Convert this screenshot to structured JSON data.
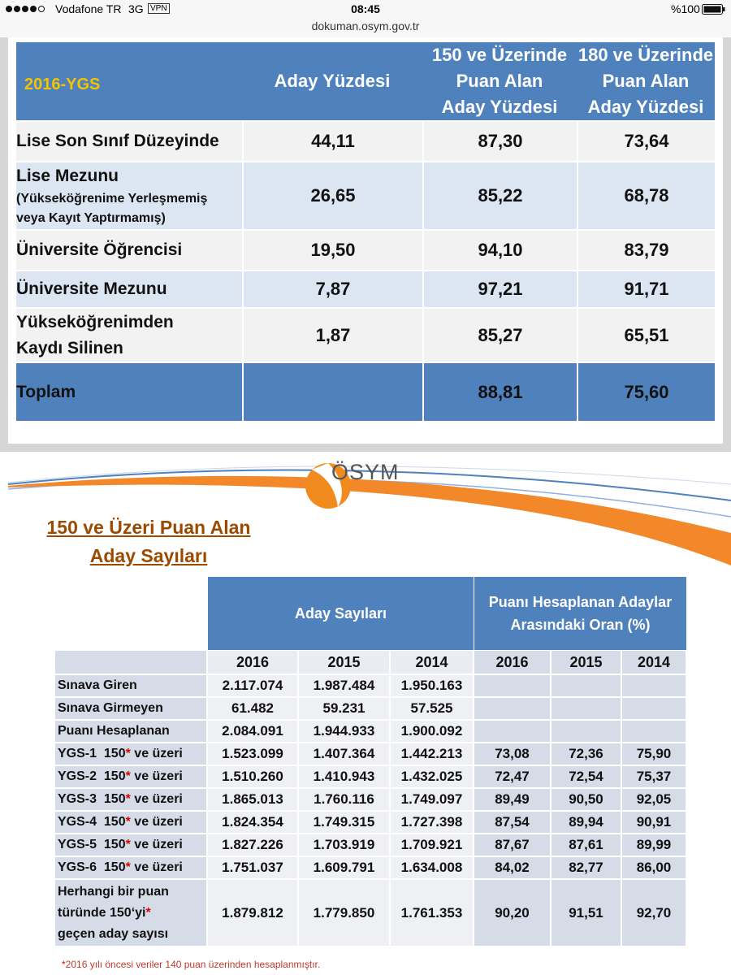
{
  "status_bar": {
    "carrier": "Vodafone TR",
    "network": "3G",
    "vpn": "VPN",
    "time": "08:45",
    "battery": "%100"
  },
  "url": "dokuman.osym.gov.tr",
  "table1": {
    "header": [
      [
        "2016-YGS"
      ],
      [
        "Aday Yüzdesi"
      ],
      [
        "150 ve Üzerinde",
        "Puan Alan",
        "Aday Yüzdesi"
      ],
      [
        "180 ve Üzerinde",
        "Puan Alan",
        "Aday Yüzdesi"
      ]
    ],
    "rows": [
      {
        "label": [
          "Lise Son Sınıf Düzeyinde"
        ],
        "cells": [
          "44,11",
          "87,30",
          "73,64"
        ]
      },
      {
        "label": [
          "Lise Mezunu"
        ],
        "note": [
          "(Yükseköğrenime Yerleşmemiş",
          "veya Kayıt Yaptırmamış)"
        ],
        "cells": [
          "26,65",
          "85,22",
          "68,78"
        ]
      },
      {
        "label": [
          "Üniversite Öğrencisi"
        ],
        "cells": [
          "19,50",
          "94,10",
          "83,79"
        ]
      },
      {
        "label": [
          "Üniversite Mezunu"
        ],
        "cells": [
          "7,87",
          "97,21",
          "91,71"
        ]
      },
      {
        "label": [
          "Yükseköğrenimden",
          "Kaydı Silinen"
        ],
        "cells": [
          "1,87",
          "85,27",
          "65,51"
        ]
      },
      {
        "label": [
          "Toplam"
        ],
        "cells": [
          null,
          "88,81",
          "75,60"
        ]
      }
    ]
  },
  "slide2": {
    "logo": "ÖSYM",
    "title": [
      "150 ve Üzeri Puan Alan",
      "Aday Sayıları"
    ]
  },
  "table2": {
    "groups": [
      [
        "Aday Sayıları"
      ],
      [
        "Puanı Hesaplanan Adaylar",
        "Arasındaki Oran (%)"
      ]
    ],
    "years": [
      "2016",
      "2015",
      "2014",
      "2016",
      "2015",
      "2014"
    ],
    "rows": [
      {
        "label": [
          "Sınava Giren"
        ],
        "cells": [
          "2.117.074",
          "1.987.484",
          "1.950.163",
          null,
          null,
          null
        ]
      },
      {
        "label": [
          "Sınava Girmeyen"
        ],
        "cells": [
          "61.482",
          "59.231",
          "57.525",
          null,
          null,
          null
        ]
      },
      {
        "label": [
          "Puanı Hesaplanan"
        ],
        "cells": [
          "2.084.091",
          "1.944.933",
          "1.900.092",
          null,
          null,
          null
        ]
      },
      {
        "label": [
          "YGS-1  150* ve üzeri"
        ],
        "cells": [
          "1.523.099",
          "1.407.364",
          "1.442.213",
          "73,08",
          "72,36",
          "75,90"
        ]
      },
      {
        "label": [
          "YGS-2  150* ve üzeri"
        ],
        "cells": [
          "1.510.260",
          "1.410.943",
          "1.432.025",
          "72,47",
          "72,54",
          "75,37"
        ]
      },
      {
        "label": [
          "YGS-3  150* ve üzeri"
        ],
        "cells": [
          "1.865.013",
          "1.760.116",
          "1.749.097",
          "89,49",
          "90,50",
          "92,05"
        ]
      },
      {
        "label": [
          "YGS-4  150* ve üzeri"
        ],
        "cells": [
          "1.824.354",
          "1.749.315",
          "1.727.398",
          "87,54",
          "89,94",
          "90,91"
        ]
      },
      {
        "label": [
          "YGS-5  150* ve üzeri"
        ],
        "cells": [
          "1.827.226",
          "1.703.919",
          "1.709.921",
          "87,67",
          "87,61",
          "89,99"
        ]
      },
      {
        "label": [
          "YGS-6  150* ve üzeri"
        ],
        "cells": [
          "1.751.037",
          "1.609.791",
          "1.634.008",
          "84,02",
          "82,77",
          "86,00"
        ]
      },
      {
        "label": [
          "Herhangi bir puan",
          "türünde 150‘yi*",
          "geçen aday sayısı"
        ],
        "cells": [
          "1.879.812",
          "1.779.850",
          "1.761.353",
          "90,20",
          "91,51",
          "92,70"
        ]
      }
    ]
  },
  "footnote": "*2016 yılı öncesi veriler 140 puan üzerinden hesaplanmıştır."
}
